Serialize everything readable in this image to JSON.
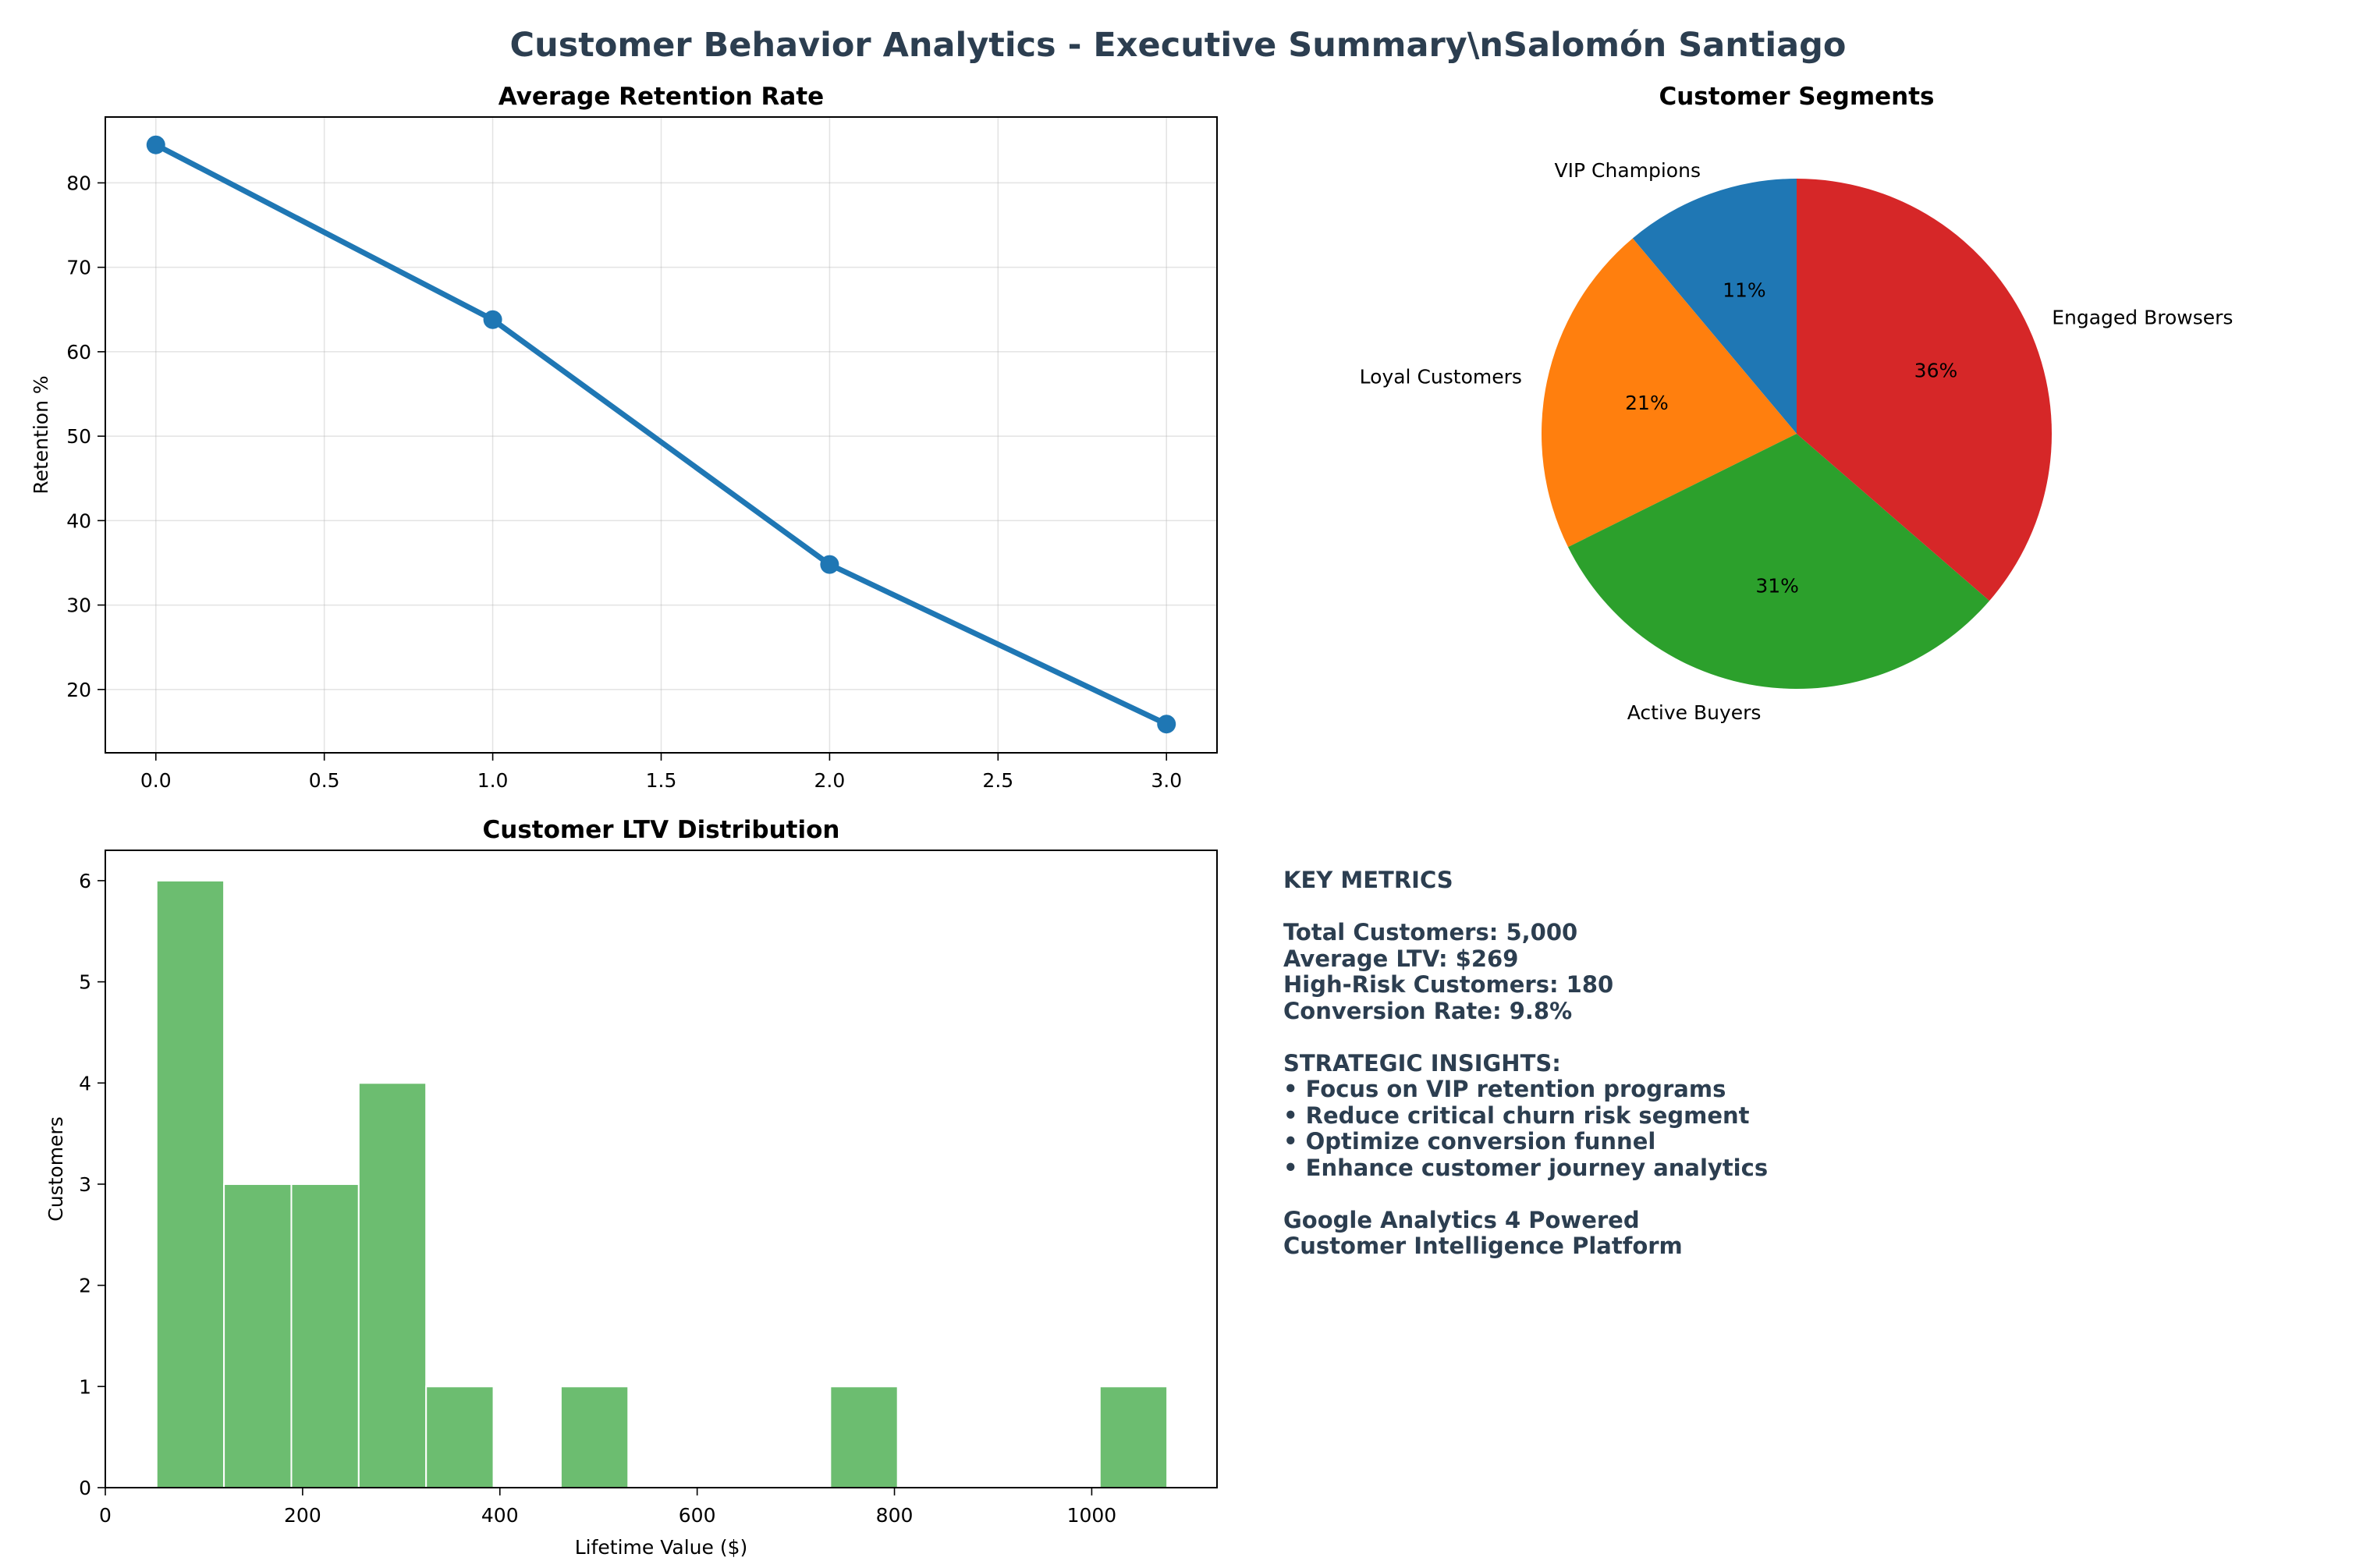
{
  "figure": {
    "suptitle": "Customer Behavior Analytics - Executive Summary\\nSalomón Santiago",
    "title_color": "#2c3e50"
  },
  "chart_data": [
    {
      "type": "line",
      "title": "Average Retention Rate",
      "xlabel": "",
      "ylabel": "Retention %",
      "x": [
        0,
        1,
        2,
        3
      ],
      "y": [
        84.5,
        63.8,
        34.8,
        15.9
      ],
      "xlim": [
        -0.15,
        3.15
      ],
      "ylim": [
        12.5,
        87.8
      ],
      "xticks": [
        "0.0",
        "0.5",
        "1.0",
        "1.5",
        "2.0",
        "2.5",
        "3.0"
      ],
      "yticks": [
        "20",
        "30",
        "40",
        "50",
        "60",
        "70",
        "80"
      ],
      "grid": true,
      "color": "#1f77b4"
    },
    {
      "type": "pie",
      "title": "Customer Segments",
      "slices": [
        {
          "label": "VIP Champions",
          "value": 11,
          "pct_label": "11%",
          "color": "#1f77b4"
        },
        {
          "label": "Loyal Customers",
          "value": 21,
          "pct_label": "21%",
          "color": "#ff7f0e"
        },
        {
          "label": "Active Buyers",
          "value": 31,
          "pct_label": "31%",
          "color": "#2ca02c"
        },
        {
          "label": "Engaged Browsers",
          "value": 36,
          "pct_label": "36%",
          "color": "#d62728"
        }
      ],
      "start_angle_deg": 90,
      "direction": "counterclockwise"
    },
    {
      "type": "bar",
      "subtype": "histogram",
      "title": "Customer LTV Distribution",
      "xlabel": "Lifetime Value ($)",
      "ylabel": "Customers",
      "bin_edges": [
        52,
        120.3,
        188.6,
        256.9,
        325.2,
        393.5,
        461.8,
        530.1,
        598.4,
        666.7,
        735,
        803.3,
        871.6,
        939.9,
        1008.2,
        1076.5
      ],
      "counts": [
        6,
        3,
        3,
        4,
        1,
        0,
        1,
        0,
        0,
        0,
        1,
        0,
        0,
        0,
        1
      ],
      "xlim": [
        0,
        1127
      ],
      "ylim": [
        0,
        6.3
      ],
      "xticks": [
        "0",
        "200",
        "400",
        "600",
        "800",
        "1000"
      ],
      "yticks": [
        "0",
        "1",
        "2",
        "3",
        "4",
        "5",
        "6"
      ],
      "color": "#4caf50",
      "grid": false
    }
  ],
  "metrics_text": {
    "lines": [
      "KEY METRICS",
      "",
      "Total Customers: 5,000",
      "Average LTV: $269",
      "High-Risk Customers: 180",
      "Conversion Rate: 9.8%",
      "",
      "STRATEGIC INSIGHTS:",
      "• Focus on VIP retention programs",
      "• Reduce critical churn risk segment",
      "• Optimize conversion funnel",
      "• Enhance customer journey analytics",
      "",
      "Google Analytics 4 Powered",
      "Customer Intelligence Platform"
    ]
  }
}
